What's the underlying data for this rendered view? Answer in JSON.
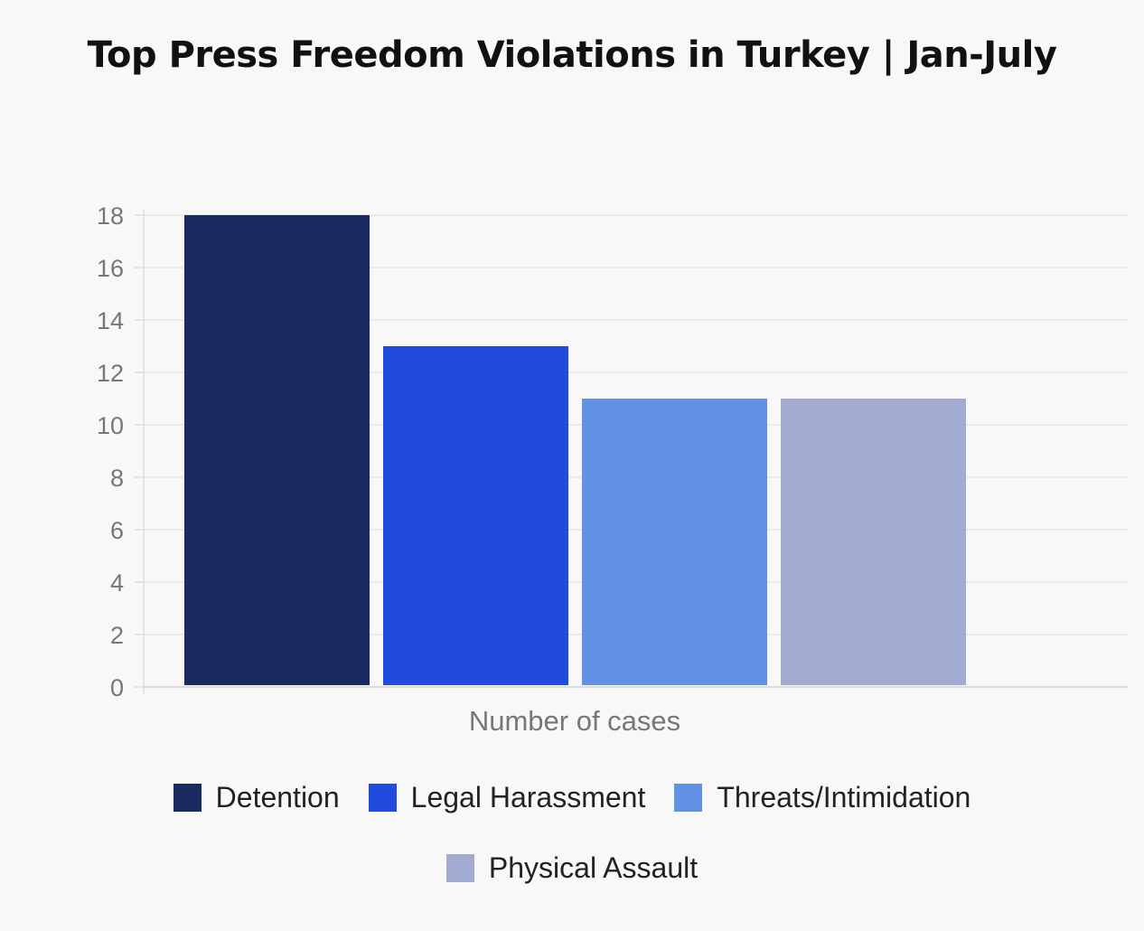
{
  "chart_data": {
    "type": "bar",
    "title": "Top Press Freedom Violations in Turkey | Jan-July",
    "xlabel": "Number of cases",
    "ylabel": "",
    "categories": [
      "Number of cases"
    ],
    "series": [
      {
        "name": "Detention",
        "values": [
          18
        ],
        "color": "#1a2a5e"
      },
      {
        "name": "Legal Harassment",
        "values": [
          13
        ],
        "color": "#214bde"
      },
      {
        "name": "Threats/Intimidation",
        "values": [
          11
        ],
        "color": "#6391e4"
      },
      {
        "name": "Physical Assault",
        "values": [
          11
        ],
        "color": "#a2acd2"
      }
    ],
    "ylim": [
      0,
      18
    ],
    "yticks": [
      "0",
      "2",
      "4",
      "6",
      "8",
      "10",
      "12",
      "14",
      "16",
      "18"
    ],
    "grid": true,
    "legend_position": "bottom"
  }
}
